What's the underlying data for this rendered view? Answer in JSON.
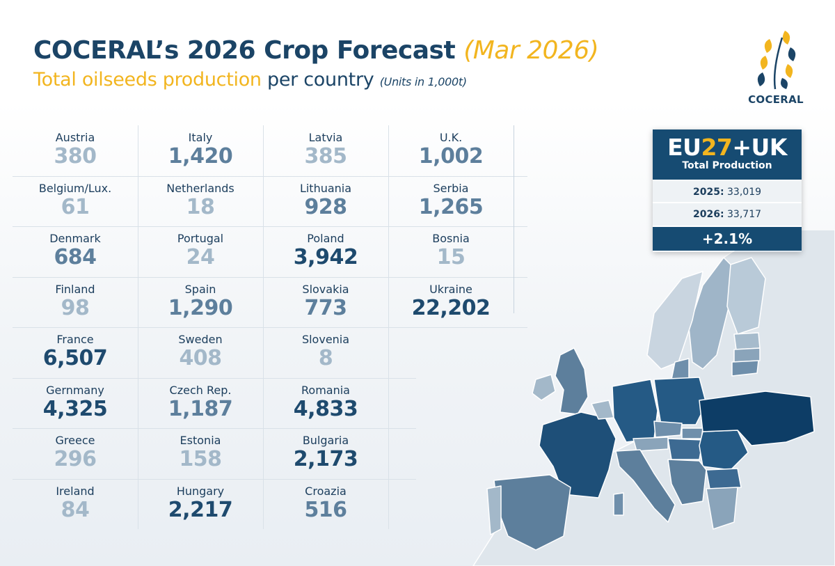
{
  "header": {
    "title": "COCERAL’s 2026 Crop Forecast",
    "title_date": "(Mar 2026)",
    "subtitle_highlight": "Total oilseeds production",
    "subtitle_rest": "per country",
    "units": "(Units in 1,000t)"
  },
  "logo": {
    "text": "COCERAL",
    "icon": "wheat-ear-icon"
  },
  "colors": {
    "navy": "#1b4466",
    "gold": "#f2b51f",
    "value_dark": "#1e4a6e",
    "value_mid": "#5d7f9c",
    "value_light": "#a3b8c9"
  },
  "countries": [
    {
      "name": "Austria",
      "value": "380",
      "tone": "light"
    },
    {
      "name": "Belgium/Lux.",
      "value": "61",
      "tone": "light"
    },
    {
      "name": "Denmark",
      "value": "684",
      "tone": "mid"
    },
    {
      "name": "Finland",
      "value": "98",
      "tone": "light"
    },
    {
      "name": "France",
      "value": "6,507",
      "tone": "dark"
    },
    {
      "name": "Gernmany",
      "value": "4,325",
      "tone": "dark"
    },
    {
      "name": "Greece",
      "value": "296",
      "tone": "light"
    },
    {
      "name": "Ireland",
      "value": "84",
      "tone": "light"
    },
    {
      "name": "Italy",
      "value": "1,420",
      "tone": "mid"
    },
    {
      "name": "Netherlands",
      "value": "18",
      "tone": "light"
    },
    {
      "name": "Portugal",
      "value": "24",
      "tone": "light"
    },
    {
      "name": "Spain",
      "value": "1,290",
      "tone": "mid"
    },
    {
      "name": "Sweden",
      "value": "408",
      "tone": "light"
    },
    {
      "name": "Czech Rep.",
      "value": "1,187",
      "tone": "mid"
    },
    {
      "name": "Estonia",
      "value": "158",
      "tone": "light"
    },
    {
      "name": "Hungary",
      "value": "2,217",
      "tone": "dark"
    },
    {
      "name": "Latvia",
      "value": "385",
      "tone": "light"
    },
    {
      "name": "Lithuania",
      "value": "928",
      "tone": "mid"
    },
    {
      "name": "Poland",
      "value": "3,942",
      "tone": "dark"
    },
    {
      "name": "Slovakia",
      "value": "773",
      "tone": "mid"
    },
    {
      "name": "Slovenia",
      "value": "8",
      "tone": "light"
    },
    {
      "name": "Romania",
      "value": "4,833",
      "tone": "dark"
    },
    {
      "name": "Bulgaria",
      "value": "2,173",
      "tone": "dark"
    },
    {
      "name": "Croazia",
      "value": "516",
      "tone": "mid"
    },
    {
      "name": "U.K.",
      "value": "1,002",
      "tone": "mid"
    },
    {
      "name": "Serbia",
      "value": "1,265",
      "tone": "mid"
    },
    {
      "name": "Bosnia",
      "value": "15",
      "tone": "light"
    },
    {
      "name": "Ukraine",
      "value": "22,202",
      "tone": "dark"
    }
  ],
  "eu_box": {
    "title_prefix": "EU",
    "title_number": "27",
    "title_suffix": "+UK",
    "subtitle": "Total Production",
    "rows": [
      {
        "label": "2025:",
        "value": "33,019"
      },
      {
        "label": "2026:",
        "value": "33,717"
      }
    ],
    "change": "+2.1%"
  },
  "map": {
    "icon": "europe-map"
  }
}
